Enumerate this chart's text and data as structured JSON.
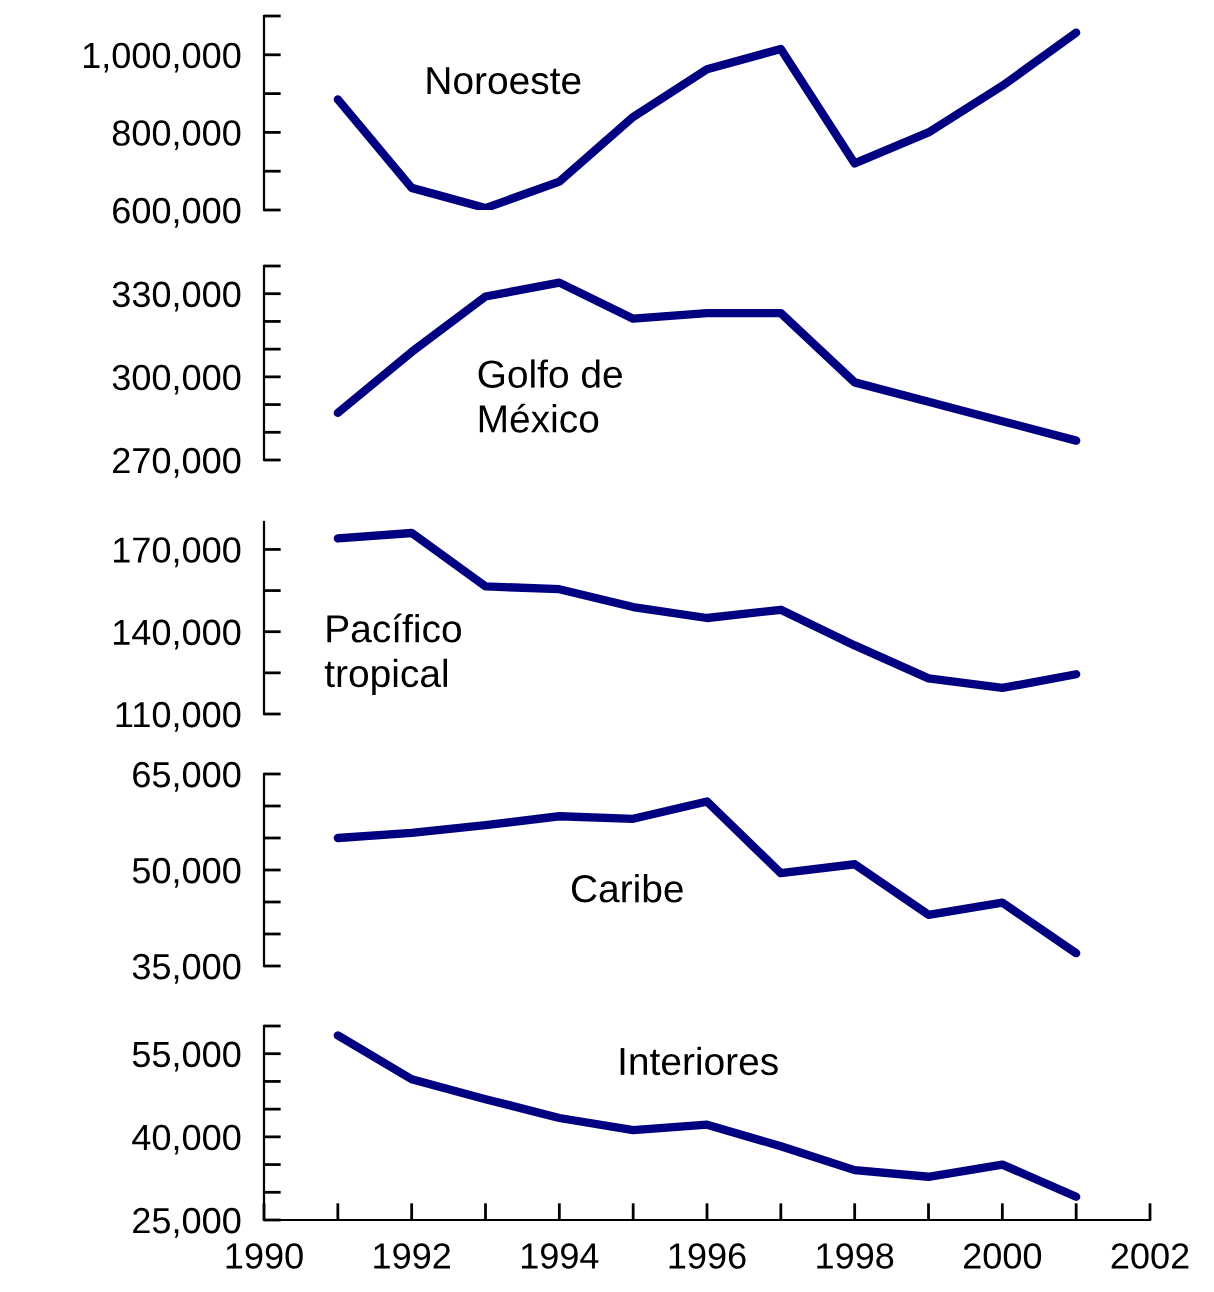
{
  "chart_data": [
    {
      "type": "line",
      "x": [
        1991,
        1992,
        1993,
        1994,
        1995,
        1996,
        1997,
        1998,
        1999,
        2000,
        2001
      ],
      "xlim": [
        1990,
        2002
      ],
      "ylim": [
        600000,
        1100000
      ],
      "yticks": [
        {
          "value": 600000,
          "label": "600,000"
        },
        {
          "value": 700000,
          "label": null
        },
        {
          "value": 800000,
          "label": "800,000"
        },
        {
          "value": 900000,
          "label": null
        },
        {
          "value": 1000000,
          "label": "1,000,000"
        },
        {
          "value": 1100000,
          "label": null
        }
      ],
      "tick_labels": "y",
      "grid": false,
      "legend": false,
      "series": [
        {
          "name": "Noroeste",
          "color": "#000080",
          "values": [
            885000,
            657000,
            605000,
            673000,
            840000,
            963000,
            1015000,
            720000,
            800000,
            920000,
            1057000
          ]
        }
      ]
    },
    {
      "type": "line",
      "x": [
        1991,
        1992,
        1993,
        1994,
        1995,
        1996,
        1997,
        1998,
        1999,
        2000,
        2001
      ],
      "xlim": [
        1990,
        2002
      ],
      "ylim": [
        270000,
        340000
      ],
      "yticks": [
        {
          "value": 270000,
          "label": "270,000"
        },
        {
          "value": 280000,
          "label": null
        },
        {
          "value": 290000,
          "label": null
        },
        {
          "value": 300000,
          "label": "300,000"
        },
        {
          "value": 310000,
          "label": null
        },
        {
          "value": 320000,
          "label": null
        },
        {
          "value": 330000,
          "label": "330,000"
        },
        {
          "value": 340000,
          "label": null
        }
      ],
      "tick_labels": "y",
      "grid": false,
      "legend": false,
      "series": [
        {
          "name": "Golfo de\nMéxico",
          "color": "#000080",
          "values": [
            287000,
            309000,
            329000,
            334000,
            321000,
            323000,
            323000,
            298000,
            291000,
            284000,
            277000
          ]
        }
      ]
    },
    {
      "type": "line",
      "x": [
        1991,
        1992,
        1993,
        1994,
        1995,
        1996,
        1997,
        1998,
        1999,
        2000,
        2001
      ],
      "xlim": [
        1990,
        2002
      ],
      "ylim": [
        110000,
        180000
      ],
      "yticks": [
        {
          "value": 110000,
          "label": "110,000"
        },
        {
          "value": 125000,
          "label": null
        },
        {
          "value": 140000,
          "label": "140,000"
        },
        {
          "value": 155000,
          "label": null
        },
        {
          "value": 170000,
          "label": "170,000"
        }
      ],
      "tick_labels": "y",
      "grid": false,
      "legend": false,
      "series": [
        {
          "name": "Pacífico\ntropical",
          "color": "#000080",
          "values": [
            174000,
            176000,
            156500,
            155500,
            149000,
            145000,
            148000,
            135000,
            123000,
            119500,
            124500
          ]
        }
      ]
    },
    {
      "type": "line",
      "x": [
        1991,
        1992,
        1993,
        1994,
        1995,
        1996,
        1997,
        1998,
        1999,
        2000,
        2001
      ],
      "xlim": [
        1990,
        2002
      ],
      "ylim": [
        35000,
        65000
      ],
      "yticks": [
        {
          "value": 35000,
          "label": "35,000"
        },
        {
          "value": 40000,
          "label": null
        },
        {
          "value": 45000,
          "label": null
        },
        {
          "value": 50000,
          "label": "50,000"
        },
        {
          "value": 55000,
          "label": null
        },
        {
          "value": 60000,
          "label": null
        },
        {
          "value": 65000,
          "label": "65,000"
        }
      ],
      "tick_labels": "y",
      "grid": false,
      "legend": false,
      "series": [
        {
          "name": "Caribe",
          "color": "#000080",
          "values": [
            55000,
            55800,
            57000,
            58400,
            58000,
            60700,
            49500,
            50900,
            43000,
            44900,
            37000
          ]
        }
      ]
    },
    {
      "type": "line",
      "x": [
        1991,
        1992,
        1993,
        1994,
        1995,
        1996,
        1997,
        1998,
        1999,
        2000,
        2001
      ],
      "xlim": [
        1990,
        2002
      ],
      "ylim": [
        25000,
        60000
      ],
      "yticks": [
        {
          "value": 25000,
          "label": "25,000"
        },
        {
          "value": 30000,
          "label": null
        },
        {
          "value": 35000,
          "label": null
        },
        {
          "value": 40000,
          "label": "40,000"
        },
        {
          "value": 45000,
          "label": null
        },
        {
          "value": 50000,
          "label": null
        },
        {
          "value": 55000,
          "label": "55,000"
        },
        {
          "value": 60000,
          "label": null
        }
      ],
      "xticks": [
        1990,
        {
          "value": 1991,
          "label": null
        },
        1992,
        {
          "value": 1993,
          "label": null
        },
        1994,
        {
          "value": 1995,
          "label": null
        },
        1996,
        {
          "value": 1997,
          "label": null
        },
        1998,
        {
          "value": 1999,
          "label": null
        },
        2000,
        {
          "value": 2001,
          "label": null
        },
        2002
      ],
      "grid": false,
      "legend": false,
      "series": [
        {
          "name": "Interiores",
          "color": "#000080",
          "values": [
            58300,
            50400,
            46800,
            43400,
            41200,
            42200,
            38300,
            34000,
            32800,
            35000,
            29200
          ]
        }
      ]
    }
  ]
}
